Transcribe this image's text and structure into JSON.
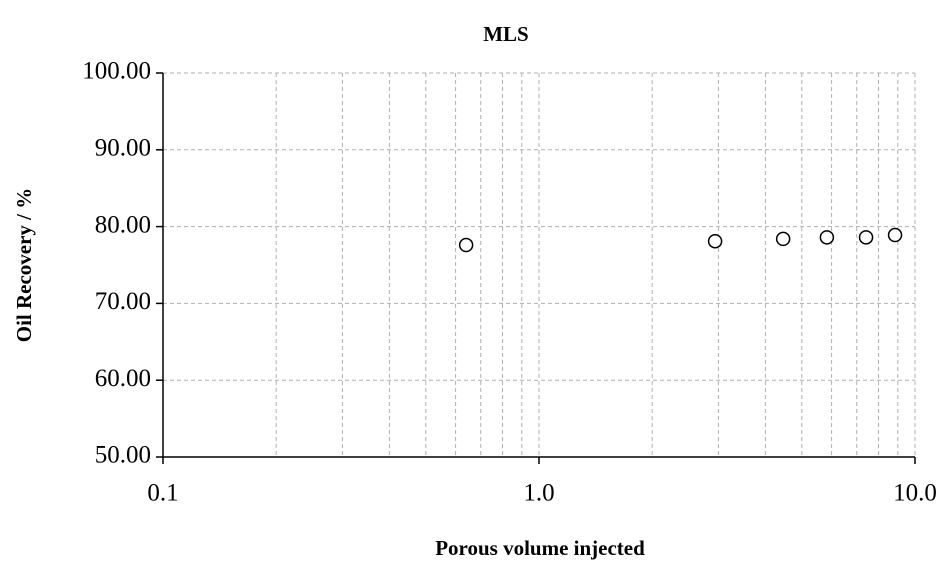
{
  "chart_data": {
    "type": "scatter",
    "title": "MLS",
    "xlabel": "Porous volume injected",
    "ylabel": "Oil Recovery / %",
    "x": [
      0.64,
      2.94,
      4.46,
      5.83,
      7.41,
      8.85
    ],
    "values": [
      77.6,
      78.1,
      78.4,
      78.6,
      78.6,
      78.9
    ],
    "color": "#000000",
    "xscale": "log",
    "xlim": [
      0.1,
      10
    ],
    "xticks": [
      0.1,
      {
        "value": 1,
        "label": "1.0"
      },
      {
        "value": 10,
        "label": "10.0"
      }
    ],
    "ylim": [
      50,
      100
    ],
    "yticks": [
      {
        "value": 50,
        "label": "50.00"
      },
      {
        "value": 60,
        "label": "60.00"
      },
      {
        "value": 70,
        "label": "70.00"
      },
      {
        "value": 80,
        "label": "80.00"
      },
      {
        "value": 90,
        "label": "90.00"
      },
      {
        "value": 100,
        "label": "100.00"
      }
    ],
    "grid": true
  }
}
